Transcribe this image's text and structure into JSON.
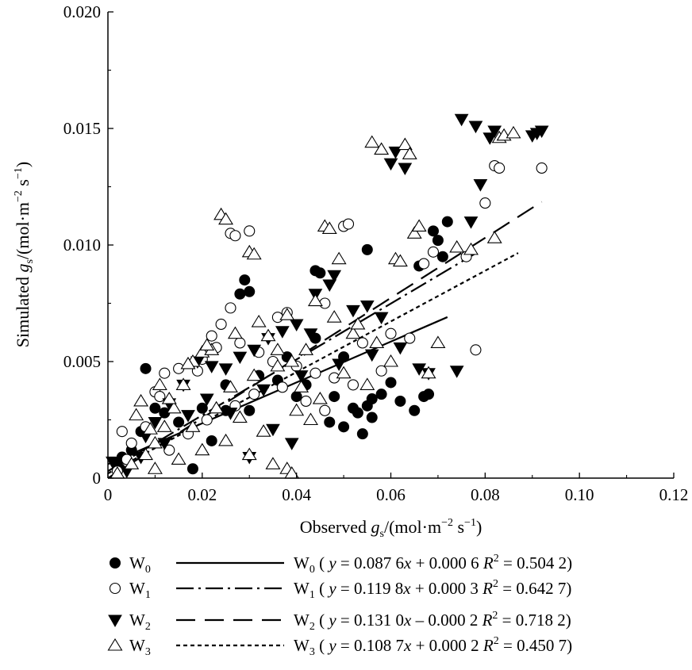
{
  "chart_data": {
    "type": "scatter",
    "title": "",
    "xlabel": {
      "prefix": "Observed ",
      "var": "g",
      "sub": "s",
      "units": "/(mol·m",
      "exp1": "−2",
      "mid": " s",
      "exp2": "−1",
      "close": ")"
    },
    "ylabel": {
      "prefix": "Simulated ",
      "var": "g",
      "sub": "s",
      "units": "/(mol·m",
      "exp1": "−2",
      "mid": " s",
      "exp2": "−1",
      "close": ")"
    },
    "xlim": [
      0,
      0.12
    ],
    "ylim": [
      0,
      0.02
    ],
    "xticks": [
      0,
      0.02,
      0.04,
      0.06,
      0.08,
      0.1,
      0.12
    ],
    "xtick_labels": [
      "0",
      "0.02",
      "0.04",
      "0.06",
      "0.08",
      "0.10",
      "0.12"
    ],
    "yticks": [
      0,
      0.005,
      0.01,
      0.015,
      0.02
    ],
    "ytick_labels": [
      "0",
      "0.005",
      "0.010",
      "0.015",
      "0.020"
    ],
    "legend_position": "bottom",
    "series": [
      {
        "name": "W",
        "sub": "0",
        "marker": "filled-circle",
        "points": [
          [
            0.008,
            0.0047
          ],
          [
            0.029,
            0.0085
          ],
          [
            0.028,
            0.0079
          ],
          [
            0.03,
            0.008
          ],
          [
            0.044,
            0.0089
          ],
          [
            0.045,
            0.0088
          ],
          [
            0.055,
            0.0098
          ],
          [
            0.066,
            0.0091
          ],
          [
            0.069,
            0.0106
          ],
          [
            0.072,
            0.011
          ],
          [
            0.07,
            0.0102
          ],
          [
            0.071,
            0.0095
          ],
          [
            0.048,
            0.0035
          ],
          [
            0.05,
            0.0022
          ],
          [
            0.052,
            0.003
          ],
          [
            0.055,
            0.0031
          ],
          [
            0.056,
            0.0026
          ],
          [
            0.054,
            0.0019
          ],
          [
            0.058,
            0.0036
          ],
          [
            0.062,
            0.0033
          ],
          [
            0.067,
            0.0035
          ],
          [
            0.068,
            0.0036
          ],
          [
            0.046,
            0.0029
          ],
          [
            0.042,
            0.004
          ],
          [
            0.04,
            0.0035
          ],
          [
            0.036,
            0.0042
          ],
          [
            0.06,
            0.0041
          ],
          [
            0.03,
            0.0029
          ],
          [
            0.025,
            0.0029
          ],
          [
            0.02,
            0.003
          ],
          [
            0.015,
            0.0024
          ],
          [
            0.012,
            0.0028
          ],
          [
            0.01,
            0.003
          ],
          [
            0.005,
            0.0012
          ],
          [
            0.003,
            0.0009
          ],
          [
            0.002,
            0.0006
          ],
          [
            0.007,
            0.002
          ],
          [
            0.018,
            0.0004
          ],
          [
            0.022,
            0.0016
          ],
          [
            0.025,
            0.004
          ],
          [
            0.032,
            0.0044
          ],
          [
            0.038,
            0.0052
          ],
          [
            0.044,
            0.006
          ],
          [
            0.05,
            0.0052
          ],
          [
            0.065,
            0.0029
          ],
          [
            0.056,
            0.0034
          ],
          [
            0.047,
            0.0024
          ],
          [
            0.053,
            0.0028
          ]
        ]
      },
      {
        "name": "W",
        "sub": "1",
        "marker": "open-circle",
        "points": [
          [
            0.002,
            0.0003
          ],
          [
            0.004,
            0.0008
          ],
          [
            0.003,
            0.002
          ],
          [
            0.01,
            0.0037
          ],
          [
            0.011,
            0.0035
          ],
          [
            0.012,
            0.0045
          ],
          [
            0.019,
            0.0046
          ],
          [
            0.022,
            0.0061
          ],
          [
            0.024,
            0.0066
          ],
          [
            0.026,
            0.0073
          ],
          [
            0.026,
            0.0105
          ],
          [
            0.027,
            0.0104
          ],
          [
            0.03,
            0.0106
          ],
          [
            0.036,
            0.0069
          ],
          [
            0.038,
            0.0071
          ],
          [
            0.046,
            0.0075
          ],
          [
            0.05,
            0.0108
          ],
          [
            0.051,
            0.0109
          ],
          [
            0.067,
            0.0092
          ],
          [
            0.069,
            0.0097
          ],
          [
            0.076,
            0.0095
          ],
          [
            0.078,
            0.0055
          ],
          [
            0.082,
            0.0134
          ],
          [
            0.083,
            0.0133
          ],
          [
            0.08,
            0.0118
          ],
          [
            0.092,
            0.0133
          ],
          [
            0.015,
            0.0047
          ],
          [
            0.02,
            0.0051
          ],
          [
            0.023,
            0.0056
          ],
          [
            0.028,
            0.0058
          ],
          [
            0.032,
            0.0054
          ],
          [
            0.035,
            0.005
          ],
          [
            0.04,
            0.0048
          ],
          [
            0.044,
            0.0045
          ],
          [
            0.048,
            0.0043
          ],
          [
            0.054,
            0.0058
          ],
          [
            0.06,
            0.0062
          ],
          [
            0.005,
            0.0015
          ],
          [
            0.008,
            0.0022
          ],
          [
            0.013,
            0.0012
          ],
          [
            0.017,
            0.0019
          ],
          [
            0.021,
            0.0025
          ],
          [
            0.027,
            0.0031
          ],
          [
            0.031,
            0.0036
          ],
          [
            0.037,
            0.0039
          ],
          [
            0.042,
            0.0033
          ],
          [
            0.046,
            0.0029
          ],
          [
            0.052,
            0.004
          ],
          [
            0.058,
            0.0046
          ],
          [
            0.064,
            0.006
          ]
        ]
      },
      {
        "name": "W",
        "sub": "2",
        "marker": "filled-triangle-down",
        "points": [
          [
            0.001,
            0.0007
          ],
          [
            0.004,
            0.0003
          ],
          [
            0.008,
            0.0018
          ],
          [
            0.01,
            0.0024
          ],
          [
            0.013,
            0.0032
          ],
          [
            0.016,
            0.004
          ],
          [
            0.019,
            0.005
          ],
          [
            0.022,
            0.0048
          ],
          [
            0.025,
            0.0047
          ],
          [
            0.028,
            0.0052
          ],
          [
            0.031,
            0.0055
          ],
          [
            0.034,
            0.006
          ],
          [
            0.037,
            0.0063
          ],
          [
            0.04,
            0.0066
          ],
          [
            0.043,
            0.0062
          ],
          [
            0.044,
            0.0079
          ],
          [
            0.047,
            0.0083
          ],
          [
            0.048,
            0.0087
          ],
          [
            0.052,
            0.0072
          ],
          [
            0.055,
            0.0074
          ],
          [
            0.058,
            0.0069
          ],
          [
            0.06,
            0.0135
          ],
          [
            0.063,
            0.0133
          ],
          [
            0.061,
            0.014
          ],
          [
            0.066,
            0.0047
          ],
          [
            0.068,
            0.0045
          ],
          [
            0.074,
            0.0046
          ],
          [
            0.075,
            0.0154
          ],
          [
            0.078,
            0.0151
          ],
          [
            0.077,
            0.011
          ],
          [
            0.079,
            0.0126
          ],
          [
            0.081,
            0.0146
          ],
          [
            0.082,
            0.0149
          ],
          [
            0.09,
            0.0147
          ],
          [
            0.091,
            0.0148
          ],
          [
            0.092,
            0.0149
          ],
          [
            0.03,
            0.0009
          ],
          [
            0.035,
            0.0021
          ],
          [
            0.039,
            0.0015
          ],
          [
            0.026,
            0.0028
          ],
          [
            0.021,
            0.0034
          ],
          [
            0.017,
            0.0027
          ],
          [
            0.012,
            0.0015
          ],
          [
            0.007,
            0.0009
          ],
          [
            0.033,
            0.0038
          ],
          [
            0.041,
            0.0044
          ],
          [
            0.049,
            0.0049
          ],
          [
            0.056,
            0.0053
          ],
          [
            0.062,
            0.0056
          ]
        ]
      },
      {
        "name": "W",
        "sub": "3",
        "marker": "open-triangle-up",
        "points": [
          [
            0.002,
            0.0002
          ],
          [
            0.005,
            0.0006
          ],
          [
            0.008,
            0.001
          ],
          [
            0.01,
            0.0015
          ],
          [
            0.012,
            0.0022
          ],
          [
            0.014,
            0.003
          ],
          [
            0.016,
            0.004
          ],
          [
            0.018,
            0.005
          ],
          [
            0.02,
            0.0054
          ],
          [
            0.022,
            0.0055
          ],
          [
            0.024,
            0.0113
          ],
          [
            0.025,
            0.0111
          ],
          [
            0.03,
            0.0097
          ],
          [
            0.031,
            0.0096
          ],
          [
            0.034,
            0.0061
          ],
          [
            0.036,
            0.0055
          ],
          [
            0.039,
            0.005
          ],
          [
            0.042,
            0.0055
          ],
          [
            0.046,
            0.0108
          ],
          [
            0.047,
            0.0107
          ],
          [
            0.049,
            0.0094
          ],
          [
            0.052,
            0.0062
          ],
          [
            0.056,
            0.0144
          ],
          [
            0.058,
            0.0141
          ],
          [
            0.061,
            0.0094
          ],
          [
            0.062,
            0.0093
          ],
          [
            0.063,
            0.0143
          ],
          [
            0.064,
            0.0139
          ],
          [
            0.065,
            0.0105
          ],
          [
            0.066,
            0.0108
          ],
          [
            0.068,
            0.0045
          ],
          [
            0.07,
            0.0058
          ],
          [
            0.074,
            0.0099
          ],
          [
            0.077,
            0.0098
          ],
          [
            0.083,
            0.0146
          ],
          [
            0.084,
            0.0147
          ],
          [
            0.086,
            0.0148
          ],
          [
            0.082,
            0.0103
          ],
          [
            0.01,
            0.0004
          ],
          [
            0.015,
            0.0008
          ],
          [
            0.02,
            0.0012
          ],
          [
            0.025,
            0.0016
          ],
          [
            0.03,
            0.001
          ],
          [
            0.035,
            0.0006
          ],
          [
            0.038,
            0.0004
          ],
          [
            0.039,
            0.0002
          ],
          [
            0.033,
            0.002
          ],
          [
            0.028,
            0.0026
          ],
          [
            0.023,
            0.003
          ],
          [
            0.018,
            0.0022
          ],
          [
            0.013,
            0.0034
          ],
          [
            0.026,
            0.0039
          ],
          [
            0.031,
            0.0044
          ],
          [
            0.036,
            0.0048
          ],
          [
            0.041,
            0.0039
          ],
          [
            0.045,
            0.0034
          ],
          [
            0.05,
            0.0045
          ],
          [
            0.055,
            0.004
          ],
          [
            0.06,
            0.005
          ],
          [
            0.044,
            0.0076
          ],
          [
            0.038,
            0.007
          ],
          [
            0.032,
            0.0067
          ],
          [
            0.027,
            0.0062
          ],
          [
            0.021,
            0.0057
          ],
          [
            0.017,
            0.0049
          ],
          [
            0.011,
            0.004
          ],
          [
            0.007,
            0.0033
          ],
          [
            0.006,
            0.0027
          ],
          [
            0.009,
            0.0021
          ],
          [
            0.057,
            0.0058
          ],
          [
            0.053,
            0.0066
          ],
          [
            0.048,
            0.0069
          ],
          [
            0.04,
            0.0029
          ],
          [
            0.043,
            0.0025
          ]
        ]
      }
    ],
    "fit_lines": [
      {
        "name": "W",
        "sub": "0",
        "style": "solid",
        "slope": 0.0876,
        "intercept": 0.0006,
        "x_range": [
          0,
          0.072
        ],
        "eq_a": "0.087 6",
        "eq_sign": "+",
        "eq_b": "0.000 6",
        "r2": "0.504 2"
      },
      {
        "name": "W",
        "sub": "1",
        "style": "dash-dot",
        "slope": 0.1198,
        "intercept": 0.0003,
        "x_range": [
          0,
          0.078
        ],
        "eq_a": "0.119 8",
        "eq_sign": "+",
        "eq_b": "0.000 3",
        "r2": "0.642 7"
      },
      {
        "name": "W",
        "sub": "2",
        "style": "long-dash",
        "slope": 0.131,
        "intercept": -0.0002,
        "x_range": [
          0,
          0.092
        ],
        "eq_a": "0.131 0",
        "eq_sign": "–",
        "eq_b": "0.000 2",
        "r2": "0.718 2"
      },
      {
        "name": "W",
        "sub": "3",
        "style": "dotted",
        "slope": 0.1087,
        "intercept": 0.0002,
        "x_range": [
          0,
          0.087
        ],
        "eq_a": "0.108 7",
        "eq_sign": "+",
        "eq_b": "0.000 2",
        "r2": "0.450 7"
      }
    ],
    "legend_eq": {
      "open": "( ",
      "y": "y",
      "equals": " = ",
      "x": "x",
      "r": "R",
      "r_exp": "2",
      "close": ")"
    }
  }
}
